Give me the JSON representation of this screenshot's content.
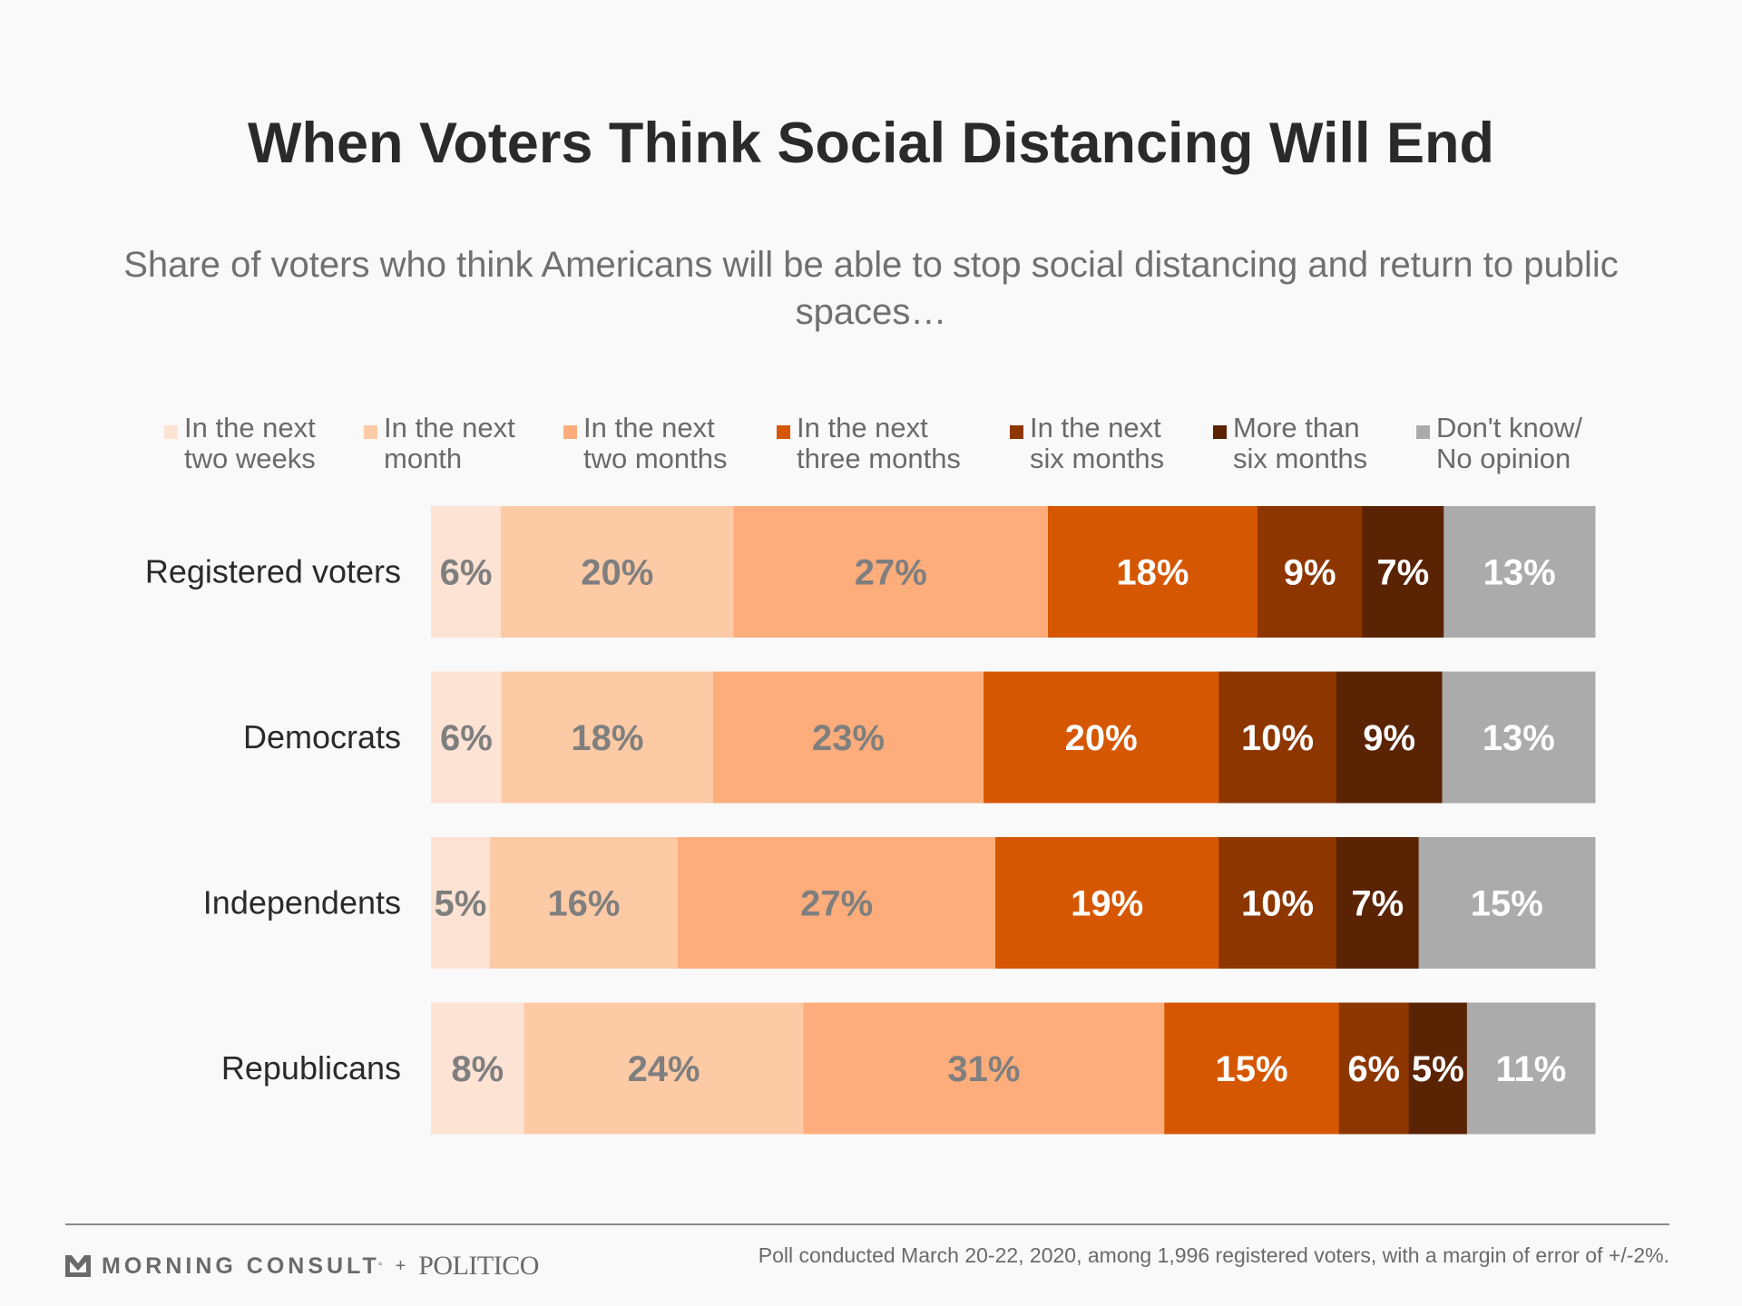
{
  "chart_data": {
    "type": "bar",
    "orientation": "horizontal",
    "stacked": true,
    "title": "When Voters Think Social Distancing Will End",
    "subtitle": "Share of voters who think Americans will be able to stop social distancing and return to public spaces…",
    "xlabel": "",
    "ylabel": "",
    "xlim": [
      0,
      100
    ],
    "grid": false,
    "legend_position": "top",
    "categories": [
      "Registered voters",
      "Democrats",
      "Independents",
      "Republicans"
    ],
    "series": [
      {
        "name": "In the next two weeks",
        "lines": [
          "In the next",
          "two weeks"
        ],
        "color": "#fde3d4",
        "label_color": "#7f7f7f",
        "values": [
          6,
          6,
          5,
          8
        ]
      },
      {
        "name": "In the next month",
        "lines": [
          "In the next",
          "month"
        ],
        "color": "#fdcaa6",
        "label_color": "#7f7f7f",
        "values": [
          20,
          18,
          16,
          24
        ]
      },
      {
        "name": "In the next two months",
        "lines": [
          "In the next",
          "two months"
        ],
        "color": "#fcad7b",
        "label_color": "#7f7f7f",
        "values": [
          27,
          23,
          27,
          31
        ]
      },
      {
        "name": "In the next three months",
        "lines": [
          "In the next",
          "three months"
        ],
        "color": "#d65701",
        "label_color": "#ffffff",
        "values": [
          18,
          20,
          19,
          15
        ]
      },
      {
        "name": "In the next six months",
        "lines": [
          "In the next",
          "six months"
        ],
        "color": "#8d3600",
        "label_color": "#ffffff",
        "values": [
          9,
          10,
          10,
          6
        ]
      },
      {
        "name": "More than six months",
        "lines": [
          "More than",
          "six months"
        ],
        "color": "#5a2304",
        "label_color": "#ffffff",
        "values": [
          7,
          9,
          7,
          5
        ]
      },
      {
        "name": "Don't know/ No opinion",
        "lines": [
          "Don't know/",
          "No opinion"
        ],
        "color": "#ababab",
        "label_color": "#ffffff",
        "values": [
          13,
          13,
          15,
          11
        ]
      }
    ]
  },
  "footer": {
    "brand": "MORNING CONSULT",
    "brand_mark": "°",
    "plus": "+",
    "partner": "POLITICO",
    "source": "Poll conducted March 20-22, 2020, among 1,996 registered voters, with a margin of error of +/-2%."
  },
  "icons": {
    "brand_logo": "morning-consult-chevron-icon"
  },
  "colors": {
    "background": "#f9f9f9",
    "title": "#2a2a2a",
    "subtitle": "#707070"
  }
}
